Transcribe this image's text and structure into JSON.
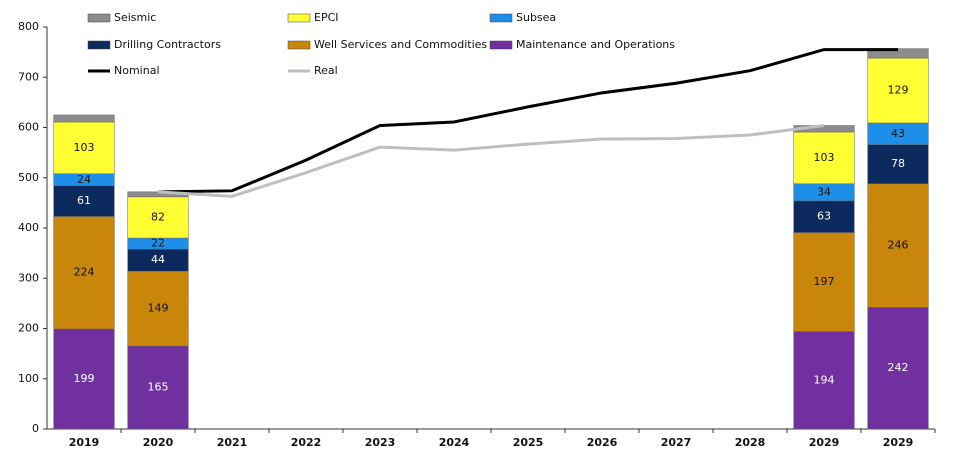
{
  "chart_data": {
    "type": "stacked-bar-line",
    "categories": [
      "2019",
      "2020",
      "2021",
      "2022",
      "2023",
      "2024",
      "2025",
      "2026",
      "2027",
      "2028",
      "2029",
      "2029"
    ],
    "series": [
      {
        "name": "Maintenance and Operations",
        "color": "#7030a0",
        "show_labels": true,
        "values": [
          199,
          165,
          null,
          null,
          null,
          null,
          null,
          null,
          null,
          null,
          194,
          242
        ]
      },
      {
        "name": "Well Services and Commodities",
        "color": "#c8860a",
        "show_labels": true,
        "values": [
          224,
          149,
          null,
          null,
          null,
          null,
          null,
          null,
          null,
          null,
          197,
          246
        ]
      },
      {
        "name": "Drilling Contractors",
        "color": "#0d2a5e",
        "show_labels": true,
        "values": [
          61,
          44,
          null,
          null,
          null,
          null,
          null,
          null,
          null,
          null,
          63,
          78
        ]
      },
      {
        "name": "Subsea",
        "color": "#1e8fe8",
        "show_labels": true,
        "values": [
          24,
          22,
          null,
          null,
          null,
          null,
          null,
          null,
          null,
          null,
          34,
          43
        ]
      },
      {
        "name": "EPCI",
        "color": "#ffff33",
        "show_labels": true,
        "values": [
          103,
          82,
          null,
          null,
          null,
          null,
          null,
          null,
          null,
          null,
          103,
          129
        ]
      },
      {
        "name": "Seismic",
        "color": "#8c8c8c",
        "show_labels": false,
        "values": [
          14,
          10,
          null,
          null,
          null,
          null,
          null,
          null,
          null,
          null,
          13,
          19
        ]
      }
    ],
    "lines": [
      {
        "name": "Nominal",
        "color": "#000000",
        "values": [
          null,
          472,
          474,
          535,
          604,
          611,
          641,
          669,
          688,
          713,
          755,
          755
        ]
      },
      {
        "name": "Real",
        "color": "#bfbfbf",
        "values": [
          null,
          472,
          463,
          510,
          561,
          555,
          567,
          577,
          578,
          585,
          604,
          null
        ]
      }
    ],
    "legend_order": [
      "Seismic",
      "EPCI",
      "Subsea",
      "Drilling Contractors",
      "Well Services and Commodities",
      "Maintenance and Operations",
      "Nominal",
      "Real"
    ],
    "ylim": [
      0,
      800
    ],
    "yticks": [
      0,
      100,
      200,
      300,
      400,
      500,
      600,
      700,
      800
    ],
    "grid": false
  }
}
